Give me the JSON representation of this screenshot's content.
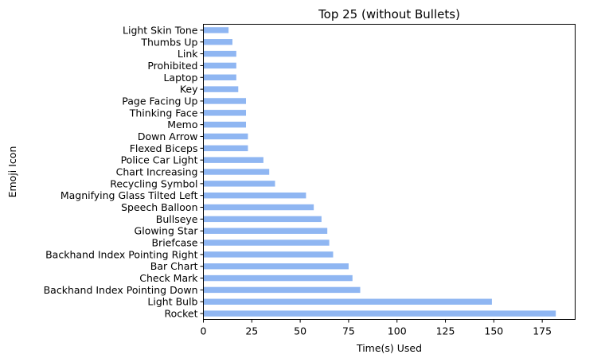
{
  "chart_data": {
    "type": "bar",
    "orientation": "horizontal",
    "title": "Top 25 (without Bullets)",
    "xlabel": "Time(s) Used",
    "ylabel": "Emoji Icon",
    "xlim": [
      0,
      192
    ],
    "xticks": [
      0,
      25,
      50,
      75,
      100,
      125,
      150,
      175
    ],
    "grid": false,
    "bar_color": "#8fb6f2",
    "categories": [
      "Rocket",
      "Light Bulb",
      "Backhand Index Pointing Down",
      "Check Mark",
      "Bar Chart",
      "Backhand Index Pointing Right",
      "Briefcase",
      "Glowing Star",
      "Bullseye",
      "Speech Balloon",
      "Magnifying Glass Tilted Left",
      "Recycling Symbol",
      "Chart Increasing",
      "Police Car Light",
      "Flexed Biceps",
      "Down Arrow",
      "Memo",
      "Thinking Face",
      "Page Facing Up",
      "Key",
      "Laptop",
      "Prohibited",
      "Link",
      "Thumbs Up",
      "Light Skin Tone"
    ],
    "values": [
      182,
      149,
      81,
      77,
      75,
      67,
      65,
      64,
      61,
      57,
      53,
      37,
      34,
      31,
      23,
      23,
      22,
      22,
      22,
      18,
      17,
      17,
      17,
      15,
      13
    ]
  }
}
